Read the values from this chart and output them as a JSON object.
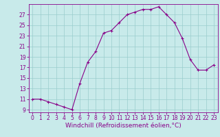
{
  "x": [
    0,
    1,
    2,
    3,
    4,
    5,
    6,
    7,
    8,
    9,
    10,
    11,
    12,
    13,
    14,
    15,
    16,
    17,
    18,
    19,
    20,
    21,
    22,
    23
  ],
  "y": [
    11,
    11,
    10.5,
    10,
    9.5,
    9,
    14,
    18,
    20,
    23.5,
    24,
    25.5,
    27,
    27.5,
    28,
    28,
    28.5,
    27,
    25.5,
    22.5,
    18.5,
    16.5,
    16.5,
    17.5
  ],
  "line_color": "#880088",
  "marker": "+",
  "bg_color": "#c8eaea",
  "grid_color": "#99cccc",
  "xlabel": "Windchill (Refroidissement éolien,°C)",
  "ylabel": "",
  "xlim": [
    -0.5,
    23.5
  ],
  "ylim": [
    8.5,
    29
  ],
  "yticks": [
    9,
    11,
    13,
    15,
    17,
    19,
    21,
    23,
    25,
    27
  ],
  "xticks": [
    0,
    1,
    2,
    3,
    4,
    5,
    6,
    7,
    8,
    9,
    10,
    11,
    12,
    13,
    14,
    15,
    16,
    17,
    18,
    19,
    20,
    21,
    22,
    23
  ],
  "tick_color": "#880088",
  "label_color": "#880088",
  "tick_fontsize": 5.5,
  "xlabel_fontsize": 6.5,
  "marker_size": 3,
  "line_width": 0.8
}
